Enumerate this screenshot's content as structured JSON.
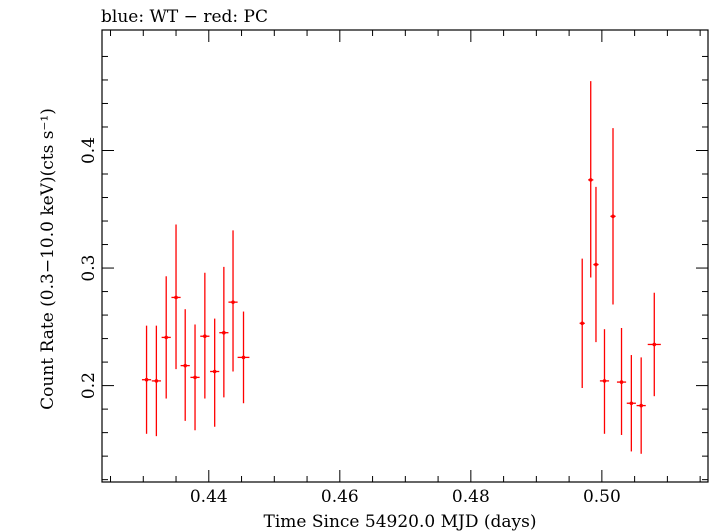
{
  "chart_data": {
    "type": "scatter",
    "title": "blue: WT − red: PC",
    "xlabel": "Time Since 54920.0 MJD (days)",
    "ylabel": "Count Rate (0.3−10.0 keV)(cts s⁻¹)",
    "xlim": [
      0.4237,
      0.5162
    ],
    "ylim": [
      0.118,
      0.5025
    ],
    "xticks": [
      {
        "value": 0.44,
        "label": "0.44"
      },
      {
        "value": 0.46,
        "label": "0.46"
      },
      {
        "value": 0.48,
        "label": "0.48"
      },
      {
        "value": 0.5,
        "label": "0.50"
      }
    ],
    "yticks": [
      {
        "value": 0.2,
        "label": "0.2"
      },
      {
        "value": 0.3,
        "label": "0.3"
      },
      {
        "value": 0.4,
        "label": "0.4"
      }
    ],
    "grid": false,
    "legend": "none",
    "series": [
      {
        "color": "#ff0000",
        "points": [
          {
            "x": 0.4305,
            "xerr": 0.0007,
            "y": 0.205,
            "ylo": 0.159,
            "yhi": 0.251
          },
          {
            "x": 0.432,
            "xerr": 0.0007,
            "y": 0.204,
            "ylo": 0.157,
            "yhi": 0.251
          },
          {
            "x": 0.4335,
            "xerr": 0.0007,
            "y": 0.241,
            "ylo": 0.189,
            "yhi": 0.293
          },
          {
            "x": 0.435,
            "xerr": 0.0007,
            "y": 0.275,
            "ylo": 0.214,
            "yhi": 0.337
          },
          {
            "x": 0.4364,
            "xerr": 0.0007,
            "y": 0.217,
            "ylo": 0.17,
            "yhi": 0.265
          },
          {
            "x": 0.4379,
            "xerr": 0.0007,
            "y": 0.207,
            "ylo": 0.162,
            "yhi": 0.252
          },
          {
            "x": 0.4394,
            "xerr": 0.0007,
            "y": 0.242,
            "ylo": 0.189,
            "yhi": 0.296
          },
          {
            "x": 0.4409,
            "xerr": 0.0007,
            "y": 0.212,
            "ylo": 0.165,
            "yhi": 0.257
          },
          {
            "x": 0.4423,
            "xerr": 0.0007,
            "y": 0.245,
            "ylo": 0.19,
            "yhi": 0.301
          },
          {
            "x": 0.4437,
            "xerr": 0.0007,
            "y": 0.271,
            "ylo": 0.212,
            "yhi": 0.332
          },
          {
            "x": 0.4453,
            "xerr": 0.0009,
            "y": 0.224,
            "ylo": 0.185,
            "yhi": 0.263
          },
          {
            "x": 0.497,
            "xerr": 0.0004,
            "y": 0.253,
            "ylo": 0.198,
            "yhi": 0.308
          },
          {
            "x": 0.4983,
            "xerr": 0.0004,
            "y": 0.375,
            "ylo": 0.292,
            "yhi": 0.459
          },
          {
            "x": 0.4991,
            "xerr": 0.0004,
            "y": 0.303,
            "ylo": 0.237,
            "yhi": 0.369
          },
          {
            "x": 0.5004,
            "xerr": 0.0007,
            "y": 0.204,
            "ylo": 0.159,
            "yhi": 0.248
          },
          {
            "x": 0.5017,
            "xerr": 0.0004,
            "y": 0.344,
            "ylo": 0.269,
            "yhi": 0.419
          },
          {
            "x": 0.503,
            "xerr": 0.0007,
            "y": 0.203,
            "ylo": 0.158,
            "yhi": 0.249
          },
          {
            "x": 0.5045,
            "xerr": 0.0007,
            "y": 0.185,
            "ylo": 0.144,
            "yhi": 0.226
          },
          {
            "x": 0.506,
            "xerr": 0.0007,
            "y": 0.183,
            "ylo": 0.142,
            "yhi": 0.224
          },
          {
            "x": 0.508,
            "xerr": 0.001,
            "y": 0.235,
            "ylo": 0.191,
            "yhi": 0.279
          }
        ]
      }
    ]
  }
}
